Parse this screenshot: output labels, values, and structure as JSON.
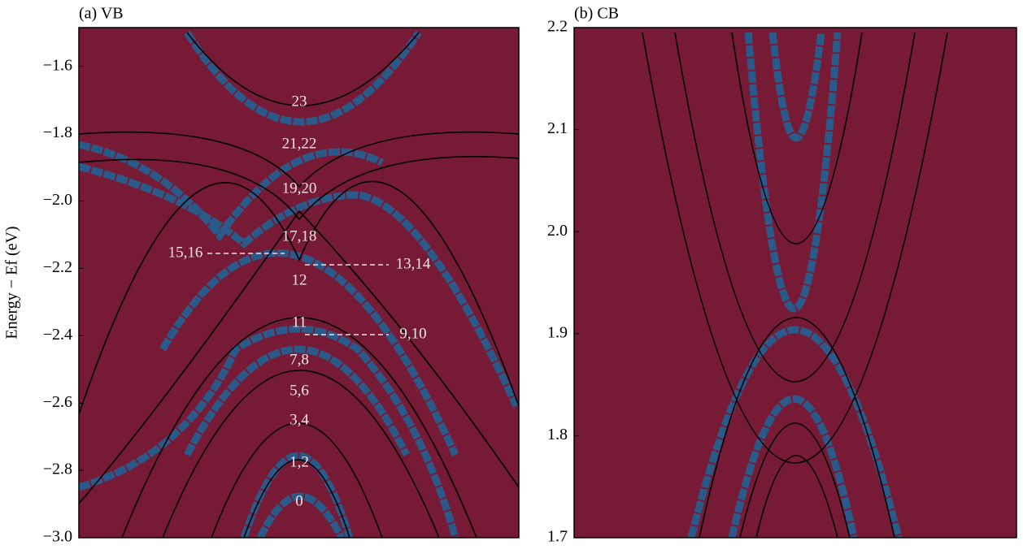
{
  "chart_data": [
    {
      "type": "heatmap",
      "title": "(a) VB",
      "ylabel": "Energy − Ef (eV)",
      "ylim": [
        -3.0,
        -1.485
      ],
      "yticks": [
        {
          "value": -3.0,
          "label": "−3.0"
        },
        {
          "value": -2.8,
          "label": "−2.8"
        },
        {
          "value": -2.6,
          "label": "−2.6"
        },
        {
          "value": -2.4,
          "label": "−2.4"
        },
        {
          "value": -2.2,
          "label": "−2.2"
        },
        {
          "value": -2.0,
          "label": "−2.0"
        },
        {
          "value": -1.8,
          "label": "−1.8"
        },
        {
          "value": -1.6,
          "label": "−1.6"
        }
      ],
      "annotations": [
        "23",
        "21,22",
        "19,20",
        "17,18",
        "15,16",
        "13,14",
        "12",
        "11",
        "9,10",
        "7,8",
        "5,6",
        "3,4",
        "1,2",
        "0"
      ]
    },
    {
      "type": "heatmap",
      "title": "(b) CB",
      "ylim": [
        1.7,
        2.2
      ],
      "yticks": [
        {
          "value": 1.7,
          "label": "1.7"
        },
        {
          "value": 1.8,
          "label": "1.8"
        },
        {
          "value": 1.9,
          "label": "1.9"
        },
        {
          "value": 2.0,
          "label": "2.0"
        },
        {
          "value": 2.1,
          "label": "2.1"
        },
        {
          "value": 2.2,
          "label": "2.2"
        }
      ]
    }
  ]
}
